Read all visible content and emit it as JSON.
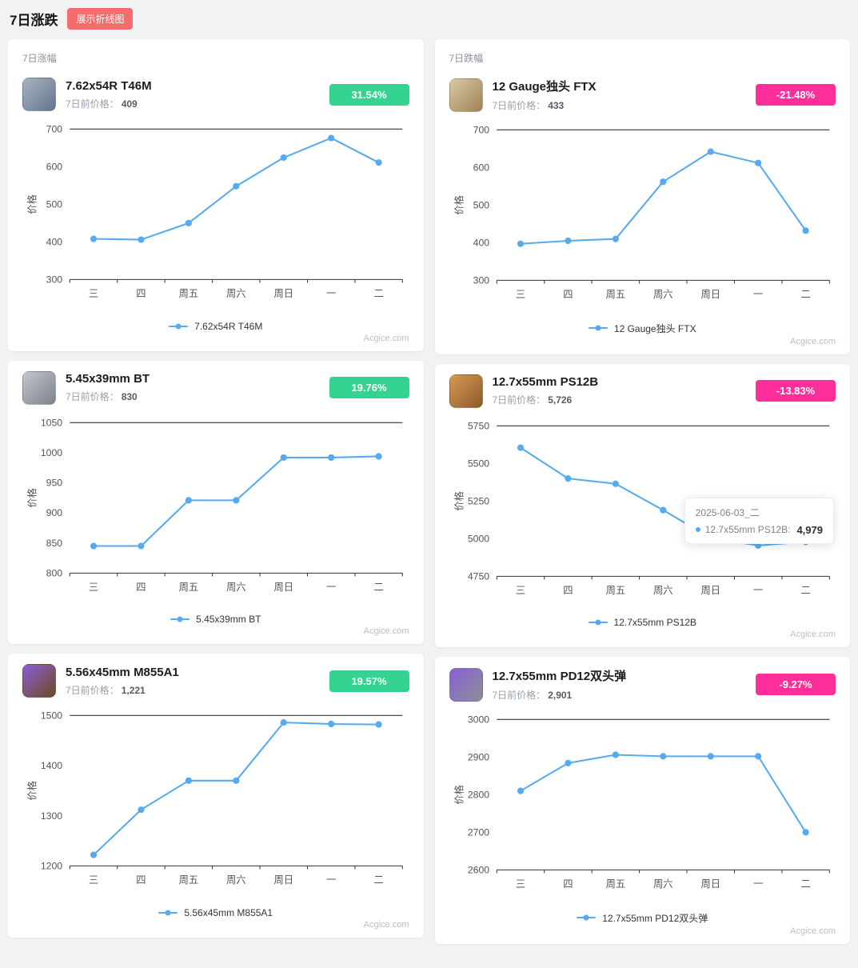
{
  "page": {
    "title": "7日涨跌",
    "toggle_button": "展示折线图"
  },
  "sections": {
    "gain_title": "7日涨幅",
    "loss_title": "7日跌幅"
  },
  "labels": {
    "prev_price": "7日前价格：",
    "y_axis": "价格",
    "watermark": "Acgice.com"
  },
  "colors": {
    "line": "#55aaf0",
    "up": "#35d392",
    "down": "#ff2e9a",
    "axis": "#333333"
  },
  "cards": [
    {
      "name": "7.62x54R T46M",
      "prev_price": "409",
      "change": "31.54%",
      "direction": "up",
      "legend": "7.62x54R T46M",
      "icon": "ammo-box-blue-gray",
      "icon_colors": [
        "#a7b4c4",
        "#64748c"
      ]
    },
    {
      "name": "12 Gauge独头 FTX",
      "prev_price": "433",
      "change": "-21.48%",
      "direction": "down",
      "legend": "12 Gauge独头 FTX",
      "icon": "ammo-box-tan",
      "icon_colors": [
        "#d9c9a4",
        "#9c8257"
      ]
    },
    {
      "name": "5.45x39mm BT",
      "prev_price": "830",
      "change": "19.76%",
      "direction": "up",
      "legend": "5.45x39mm BT",
      "icon": "ammo-box-gray",
      "icon_colors": [
        "#c2c6cc",
        "#7d838d"
      ]
    },
    {
      "name": "12.7x55mm PS12B",
      "prev_price": "5,726",
      "change": "-13.83%",
      "direction": "down",
      "legend": "12.7x55mm PS12B",
      "icon": "ammo-box-orange",
      "icon_colors": [
        "#d89a55",
        "#8a5a28"
      ]
    },
    {
      "name": "5.56x45mm M855A1",
      "prev_price": "1,221",
      "change": "19.57%",
      "direction": "up",
      "legend": "5.56x45mm M855A1",
      "icon": "ammo-box-purple-brown",
      "icon_colors": [
        "#8a5fd6",
        "#6d4a22"
      ]
    },
    {
      "name": "12.7x55mm PD12双头弹",
      "prev_price": "2,901",
      "change": "-9.27%",
      "direction": "down",
      "legend": "12.7x55mm PD12双头弹",
      "icon": "ammo-box-purple-gray",
      "icon_colors": [
        "#8a5fd6",
        "#8b8f98"
      ]
    }
  ],
  "chart_data": [
    {
      "type": "line",
      "title": "7.62x54R T46M",
      "xlabel": "",
      "ylabel": "价格",
      "grid": false,
      "legend_position": "bottom",
      "categories": [
        "三",
        "四",
        "周五",
        "周六",
        "周日",
        "一",
        "二"
      ],
      "values": [
        408,
        406,
        450,
        548,
        624,
        676,
        611
      ],
      "ylim": [
        300,
        700
      ],
      "yticks": [
        700,
        600,
        500,
        400,
        300
      ]
    },
    {
      "type": "line",
      "title": "12 Gauge独头 FTX",
      "xlabel": "",
      "ylabel": "价格",
      "grid": false,
      "legend_position": "bottom",
      "categories": [
        "三",
        "四",
        "周五",
        "周六",
        "周日",
        "一",
        "二"
      ],
      "values": [
        397,
        405,
        410,
        562,
        642,
        612,
        432
      ],
      "ylim": [
        300,
        700
      ],
      "yticks": [
        700,
        600,
        500,
        400,
        300
      ]
    },
    {
      "type": "line",
      "title": "5.45x39mm BT",
      "xlabel": "",
      "ylabel": "价格",
      "grid": false,
      "legend_position": "bottom",
      "categories": [
        "三",
        "四",
        "周五",
        "周六",
        "周日",
        "一",
        "二"
      ],
      "values": [
        845,
        845,
        921,
        921,
        992,
        992,
        994
      ],
      "ylim": [
        800,
        1050
      ],
      "yticks": [
        1050,
        1000,
        950,
        900,
        850,
        800
      ]
    },
    {
      "type": "line",
      "title": "12.7x55mm PS12B",
      "xlabel": "",
      "ylabel": "价格",
      "grid": false,
      "legend_position": "bottom",
      "categories": [
        "三",
        "四",
        "周五",
        "周六",
        "周日",
        "一",
        "二"
      ],
      "values": [
        5605,
        5400,
        5365,
        5190,
        5005,
        4955,
        4979
      ],
      "ylim": [
        4750,
        5750
      ],
      "yticks": [
        5750,
        5500,
        5250,
        5000,
        4750
      ]
    },
    {
      "type": "line",
      "title": "5.56x45mm M855A1",
      "xlabel": "",
      "ylabel": "价格",
      "grid": false,
      "legend_position": "bottom",
      "categories": [
        "三",
        "四",
        "周五",
        "周六",
        "周日",
        "一",
        "二"
      ],
      "values": [
        1222,
        1312,
        1370,
        1370,
        1486,
        1483,
        1482
      ],
      "ylim": [
        1200,
        1500
      ],
      "yticks": [
        1500,
        1400,
        1300,
        1200
      ]
    },
    {
      "type": "line",
      "title": "12.7x55mm PD12双头弹",
      "xlabel": "",
      "ylabel": "价格",
      "grid": false,
      "legend_position": "bottom",
      "categories": [
        "三",
        "四",
        "周五",
        "周六",
        "周日",
        "一",
        "二"
      ],
      "values": [
        2810,
        2884,
        2906,
        2902,
        2902,
        2902,
        2700
      ],
      "ylim": [
        2600,
        3000
      ],
      "yticks": [
        3000,
        2900,
        2800,
        2700,
        2600
      ]
    }
  ],
  "tooltip": {
    "date": "2025-06-03_二",
    "series_label": "12.7x55mm PS12B:",
    "value": "4,979"
  }
}
